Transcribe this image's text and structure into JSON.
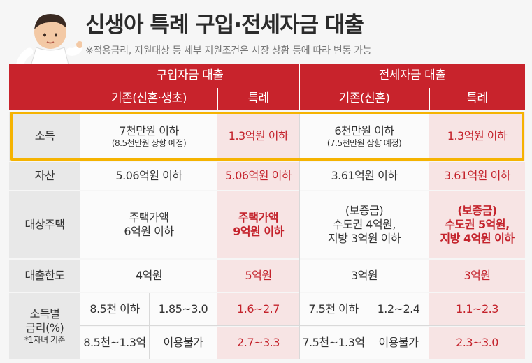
{
  "title": "신생아 특례 구입·전세자금 대출",
  "subtitle": "※적용금리, 지원대상 등 세부 지원조건은 시장 상황 등에 따라 변동 가능",
  "header": {
    "purchase": "구입자금 대출",
    "lease": "전세자금 대출",
    "purchase_existing": "기존(신혼·생초)",
    "purchase_special": "특례",
    "lease_existing": "기존(신혼)",
    "lease_special": "특례"
  },
  "rows": {
    "income": {
      "label": "소득",
      "purchase_existing": "7천만원 이하",
      "purchase_existing_note": "(8.5천만원 상향 예정)",
      "purchase_special": "1.3억원 이하",
      "lease_existing": "6천만원 이하",
      "lease_existing_note": "(7.5천만원 상향 예정)",
      "lease_special": "1.3억원 이하"
    },
    "assets": {
      "label": "자산",
      "purchase_existing": "5.06억원 이하",
      "purchase_special": "5.06억원 이하",
      "lease_existing": "3.61억원 이하",
      "lease_special": "3.61억원 이하"
    },
    "housing": {
      "label": "대상주택",
      "purchase_existing_1": "주택가액",
      "purchase_existing_2": "6억원 이하",
      "purchase_special_1": "주택가액",
      "purchase_special_2": "9억원 이하",
      "lease_existing_1": "(보증금)",
      "lease_existing_2": "수도권 4억원,",
      "lease_existing_3": "지방 3억원 이하",
      "lease_special_1": "(보증금)",
      "lease_special_2": "수도권 5억원,",
      "lease_special_3": "지방 4억원 이하"
    },
    "limit": {
      "label": "대출한도",
      "purchase_existing": "4억원",
      "purchase_special": "5억원",
      "lease_existing": "3억원",
      "lease_special": "3억원"
    },
    "rate": {
      "label_1": "소득별",
      "label_2": "금리(%)",
      "label_note": "*1자녀 기준",
      "p_income_1": "8.5천 이하",
      "p_rate_1": "1.85~3.0",
      "p_special_1": "1.6~2.7",
      "l_income_1": "7.5천 이하",
      "l_rate_1": "1.2~2.4",
      "l_special_1": "1.1~2.3",
      "p_income_2": "8.5천~1.3억",
      "p_rate_2": "이용불가",
      "p_special_2": "2.7~3.3",
      "l_income_2": "7.5천~1.3억",
      "l_rate_2": "이용불가",
      "l_special_2": "2.3~3.0"
    }
  },
  "colors": {
    "header": "#c8232c",
    "highlight": "#f5b301",
    "special_text": "#c4232c",
    "special_bg": "#f7e4e4"
  }
}
